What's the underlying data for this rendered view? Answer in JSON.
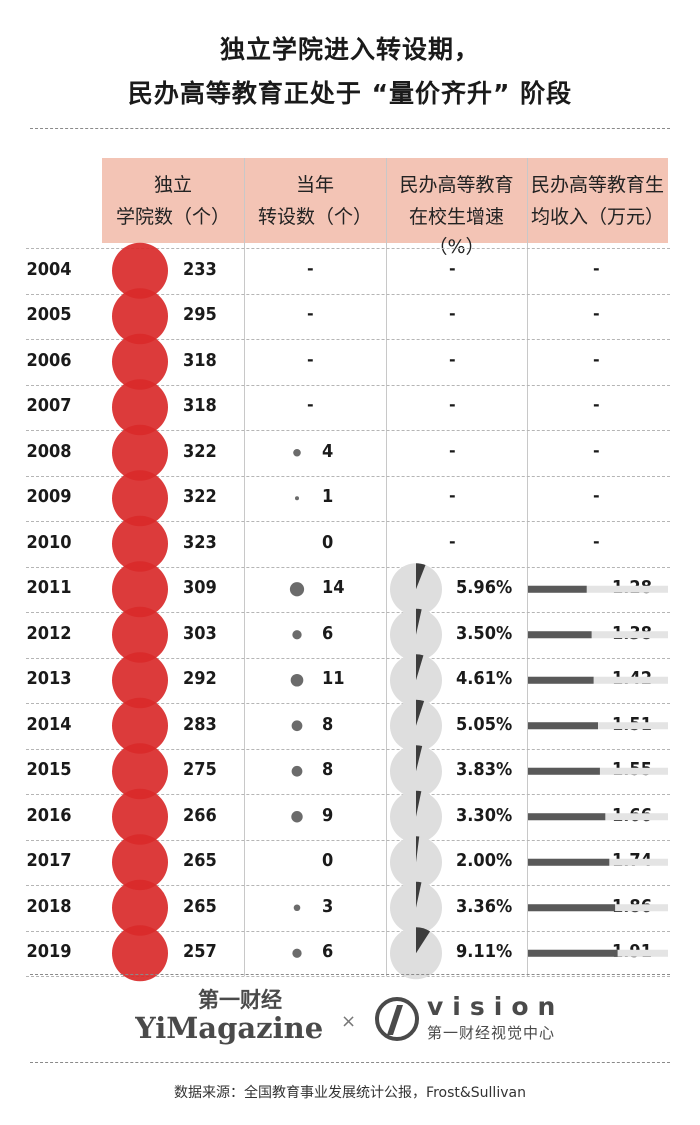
{
  "title": {
    "line1": "独立学院进入转设期，",
    "line2": "民办高等教育正处于 “量价齐升” 阶段"
  },
  "headers": [
    {
      "l1": "独立",
      "l2": "学院数（个）"
    },
    {
      "l1": "当年",
      "l2": "转设数（个）"
    },
    {
      "l1": "民办高等教育",
      "l2": "在校生增速（%）"
    },
    {
      "l1": "民办高等教育生",
      "l2": "均收入（万元）"
    }
  ],
  "colors": {
    "header_bg": "#f3c4b5",
    "circle_red": "#d92a2a",
    "dot_gray": "#6b6b6b",
    "pie_gray": "#dedede",
    "pie_dark": "#3d3d3d",
    "bar_dark": "#595959",
    "bar_track": "#e4e4e4"
  },
  "chart_data": {
    "type": "table",
    "years": [
      "2004",
      "2005",
      "2006",
      "2007",
      "2008",
      "2009",
      "2010",
      "2011",
      "2012",
      "2013",
      "2014",
      "2015",
      "2016",
      "2017",
      "2018",
      "2019"
    ],
    "independent_colleges": [
      233,
      295,
      318,
      318,
      322,
      322,
      323,
      309,
      303,
      292,
      283,
      275,
      266,
      265,
      265,
      257
    ],
    "independent_colleges_label": [
      "233",
      "295",
      "318",
      "318",
      "322",
      "322",
      "323",
      "309",
      "303",
      "292",
      "283",
      "275",
      "266",
      "265",
      "265",
      "257"
    ],
    "conversions": [
      null,
      null,
      null,
      null,
      4,
      1,
      0,
      14,
      6,
      11,
      8,
      8,
      9,
      0,
      3,
      6
    ],
    "conversions_label": [
      "-",
      "-",
      "-",
      "-",
      "4",
      "1",
      "0",
      "14",
      "6",
      "11",
      "8",
      "8",
      "9",
      "0",
      "3",
      "6"
    ],
    "enrollment_growth_pct": [
      null,
      null,
      null,
      null,
      null,
      null,
      null,
      5.96,
      3.5,
      4.61,
      5.05,
      3.83,
      3.3,
      2.0,
      3.36,
      9.11
    ],
    "enrollment_growth_label": [
      "-",
      "-",
      "-",
      "-",
      "-",
      "-",
      "-",
      "5.96%",
      "3.50%",
      "4.61%",
      "5.05%",
      "3.83%",
      "3.30%",
      "2.00%",
      "3.36%",
      "9.11%"
    ],
    "income_per_student": [
      null,
      null,
      null,
      null,
      null,
      null,
      null,
      1.28,
      1.38,
      1.42,
      1.51,
      1.55,
      1.66,
      1.74,
      1.86,
      1.91
    ],
    "income_per_student_label": [
      "-",
      "-",
      "-",
      "-",
      "-",
      "-",
      "-",
      "1.28",
      "1.38",
      "1.42",
      "1.51",
      "1.55",
      "1.66",
      "1.74",
      "1.86",
      "1.91"
    ]
  },
  "logo": {
    "cn_brand": "第一财经",
    "en_brand": "YiMagazine",
    "times": "×",
    "vision": "vision",
    "vision_sub": "第一财经视觉中心"
  },
  "source": "数据来源：全国教育事业发展统计公报，Frost&Sullivan"
}
